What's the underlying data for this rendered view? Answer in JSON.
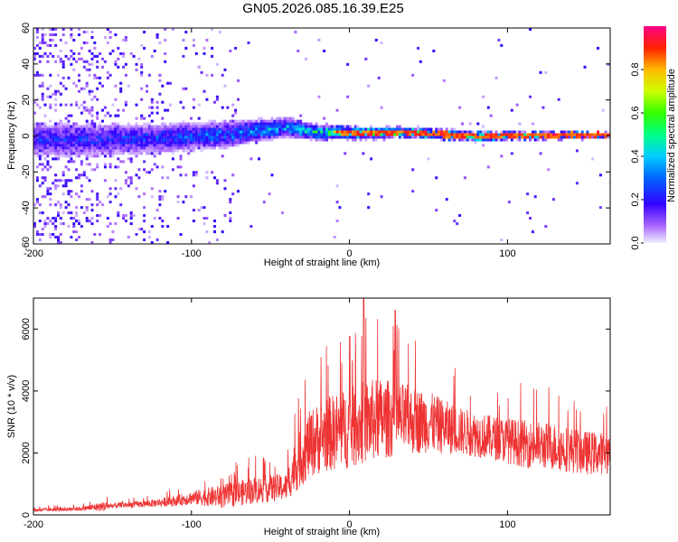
{
  "title": "GN05.2026.085.16.39.E25",
  "chart_data": [
    {
      "type": "heatmap",
      "xlabel": "Height of straight line (km)",
      "ylabel": "Frequency (Hz)",
      "xlim": [
        -200,
        165
      ],
      "ylim": [
        -60,
        60
      ],
      "xticks": [
        "-200",
        "-100",
        "0",
        "100"
      ],
      "yticks": [
        "-60",
        "-40",
        "-20",
        "0",
        "20",
        "40",
        "60"
      ],
      "colorbar": {
        "label": "Normalized spectral amplitude",
        "range": [
          0,
          1
        ],
        "ticks": [
          "0.0",
          "0.2",
          "0.4",
          "0.6",
          "0.8"
        ]
      },
      "signal_band": [
        {
          "x": -160,
          "center_hz": -3,
          "halfwidth_hz": 10,
          "peak": 0.25
        },
        {
          "x": -120,
          "center_hz": -2,
          "halfwidth_hz": 9,
          "peak": 0.3
        },
        {
          "x": -80,
          "center_hz": 0,
          "halfwidth_hz": 8,
          "peak": 0.35
        },
        {
          "x": -60,
          "center_hz": 2,
          "halfwidth_hz": 7,
          "peak": 0.4
        },
        {
          "x": -40,
          "center_hz": 4,
          "halfwidth_hz": 6,
          "peak": 0.45
        },
        {
          "x": -20,
          "center_hz": 1,
          "halfwidth_hz": 5,
          "peak": 0.55
        },
        {
          "x": 0,
          "center_hz": 1,
          "halfwidth_hz": 4,
          "peak": 0.8
        },
        {
          "x": 40,
          "center_hz": 1,
          "halfwidth_hz": 3,
          "peak": 0.85
        },
        {
          "x": 80,
          "center_hz": -1,
          "halfwidth_hz": 3,
          "peak": 0.8
        },
        {
          "x": 165,
          "center_hz": 0,
          "halfwidth_hz": 2,
          "peak": 0.9
        }
      ]
    },
    {
      "type": "line",
      "xlabel": "Height of straight line (km)",
      "ylabel": "SNR (10 * v/v)",
      "xlim": [
        -200,
        165
      ],
      "ylim": [
        0,
        7000
      ],
      "xticks": [
        "-200",
        "-100",
        "0",
        "100"
      ],
      "yticks": [
        "0",
        "2000",
        "4000",
        "6000"
      ],
      "color": "#ee3333",
      "envelope": {
        "x": [
          -200,
          -170,
          -155,
          -150,
          -130,
          -110,
          -100,
          -80,
          -60,
          -40,
          -35,
          -25,
          -15,
          0,
          10,
          20,
          30,
          50,
          70,
          90,
          110,
          130,
          150,
          165
        ],
        "base": [
          150,
          200,
          280,
          300,
          350,
          450,
          550,
          600,
          800,
          900,
          1500,
          2300,
          2600,
          2800,
          3000,
          3100,
          3100,
          3000,
          2700,
          2500,
          2300,
          2200,
          2000,
          2000
        ],
        "spread": [
          100,
          120,
          300,
          150,
          200,
          300,
          400,
          700,
          800,
          800,
          1500,
          2000,
          2200,
          2400,
          2500,
          2400,
          2200,
          1800,
          1400,
          1300,
          1400,
          1400,
          1300,
          1200
        ]
      }
    }
  ]
}
